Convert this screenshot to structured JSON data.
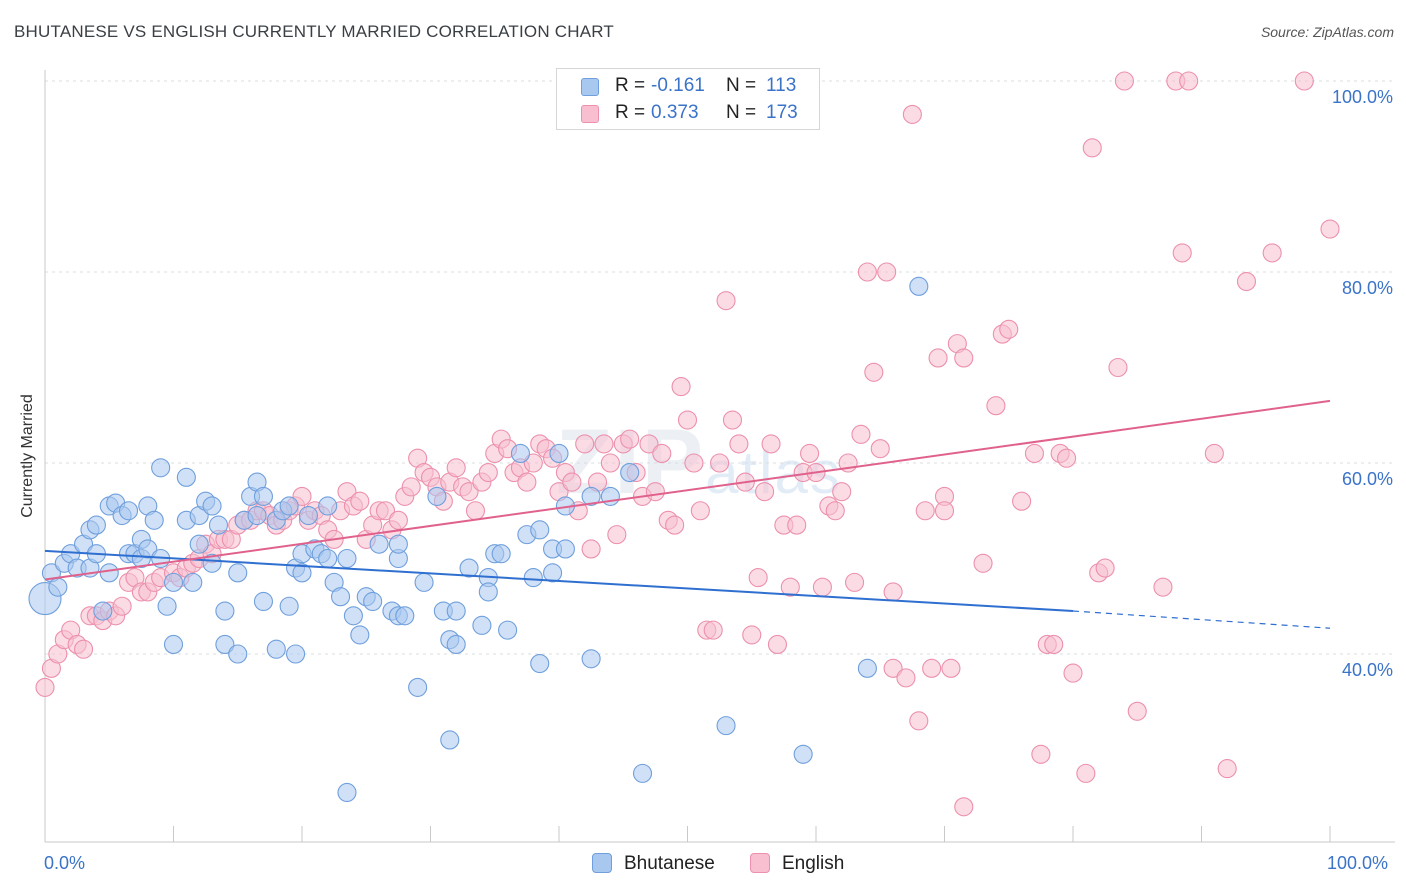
{
  "title": "BHUTANESE VS ENGLISH CURRENTLY MARRIED CORRELATION CHART",
  "source": "Source: ZipAtlas.com",
  "watermark": {
    "main": "ZIP",
    "sub": "atlas"
  },
  "legend_top": [
    {
      "r_label": "R =",
      "r_value": "-0.161",
      "n_label": "N =",
      "n_value": "113",
      "color": "#a9c8f0",
      "border": "#6f9fdc"
    },
    {
      "r_label": "R =",
      "r_value": "0.373",
      "n_label": "N =",
      "n_value": "173",
      "color": "#f7bfd0",
      "border": "#ec90ad"
    }
  ],
  "legend_bottom": [
    {
      "label": "Bhutanese",
      "color": "#a9c8f0",
      "border": "#6f9fdc"
    },
    {
      "label": "English",
      "color": "#f7bfd0",
      "border": "#ec90ad"
    }
  ],
  "axes": {
    "ylabel": "Currently Married",
    "y_ticks": [
      "40.0%",
      "60.0%",
      "80.0%",
      "100.0%"
    ],
    "x_ticks": [
      "0.0%",
      "100.0%"
    ]
  },
  "chart_data": {
    "type": "scatter",
    "title": "BHUTANESE VS ENGLISH CURRENTLY MARRIED CORRELATION CHART",
    "xlabel": "",
    "ylabel": "Currently Married",
    "xlim": [
      0,
      100
    ],
    "ylim": [
      22,
      102
    ],
    "grid": "horizontal dashed",
    "legend": "top-center",
    "series": [
      {
        "name": "Bhutanese",
        "color": "#6f9fdc",
        "fill": "#a9c8f0",
        "trend": {
          "x": [
            0,
            80
          ],
          "y": [
            50.8,
            44.5
          ],
          "dashed_extension_to": [
            100,
            42.7
          ]
        },
        "points": [
          [
            0,
            45.8
          ],
          [
            0.5,
            48.5
          ],
          [
            1,
            47
          ],
          [
            1.5,
            49.5
          ],
          [
            2,
            50.5
          ],
          [
            2.5,
            49
          ],
          [
            3,
            51.5
          ],
          [
            3.5,
            53
          ],
          [
            3.5,
            49
          ],
          [
            4,
            50.5
          ],
          [
            4,
            53.5
          ],
          [
            4.5,
            44.5
          ],
          [
            5,
            55.5
          ],
          [
            5,
            48.5
          ],
          [
            5.5,
            55.8
          ],
          [
            6,
            54.5
          ],
          [
            6.5,
            55
          ],
          [
            6.5,
            50.5
          ],
          [
            7,
            50.5
          ],
          [
            7.5,
            50
          ],
          [
            7.5,
            52
          ],
          [
            8,
            55.5
          ],
          [
            8,
            51
          ],
          [
            8.5,
            54
          ],
          [
            9,
            50
          ],
          [
            9,
            59.5
          ],
          [
            9.5,
            45
          ],
          [
            10,
            41
          ],
          [
            10,
            47.5
          ],
          [
            11,
            54
          ],
          [
            11,
            58.5
          ],
          [
            11.5,
            47.5
          ],
          [
            12,
            54.5
          ],
          [
            12,
            51.5
          ],
          [
            12.5,
            56
          ],
          [
            13,
            55.5
          ],
          [
            13,
            49.5
          ],
          [
            13.5,
            53.5
          ],
          [
            14,
            41
          ],
          [
            14,
            44.5
          ],
          [
            15,
            40
          ],
          [
            15,
            48.5
          ],
          [
            15.5,
            54
          ],
          [
            16,
            56.5
          ],
          [
            16.5,
            58
          ],
          [
            16.5,
            54.5
          ],
          [
            17,
            45.5
          ],
          [
            17,
            56.5
          ],
          [
            18,
            40.5
          ],
          [
            18,
            54
          ],
          [
            18.5,
            55
          ],
          [
            19,
            45
          ],
          [
            19,
            55.5
          ],
          [
            19.5,
            40
          ],
          [
            19.5,
            49
          ],
          [
            20,
            48.5
          ],
          [
            20,
            50.5
          ],
          [
            20.5,
            54.5
          ],
          [
            21,
            51
          ],
          [
            21.5,
            50.5
          ],
          [
            22,
            55.5
          ],
          [
            22,
            50
          ],
          [
            22.5,
            47.5
          ],
          [
            23,
            46
          ],
          [
            23.5,
            50
          ],
          [
            24,
            44
          ],
          [
            24.5,
            42
          ],
          [
            25,
            46
          ],
          [
            25.5,
            45.5
          ],
          [
            23.5,
            25.5
          ],
          [
            26,
            51.5
          ],
          [
            27,
            44.5
          ],
          [
            27.5,
            50
          ],
          [
            27.5,
            51.5
          ],
          [
            27.5,
            44
          ],
          [
            28,
            44
          ],
          [
            29,
            36.5
          ],
          [
            29.5,
            47.5
          ],
          [
            30.5,
            56.5
          ],
          [
            31,
            44.5
          ],
          [
            31.5,
            41.5
          ],
          [
            31.5,
            31
          ],
          [
            32,
            44.5
          ],
          [
            32,
            41
          ],
          [
            33,
            49
          ],
          [
            34,
            43
          ],
          [
            34.5,
            48
          ],
          [
            34.5,
            46.5
          ],
          [
            35,
            50.5
          ],
          [
            35.5,
            50.5
          ],
          [
            36,
            42.5
          ],
          [
            37,
            61
          ],
          [
            37.5,
            52.5
          ],
          [
            38,
            48
          ],
          [
            38.5,
            39
          ],
          [
            38.5,
            53
          ],
          [
            39.5,
            48.5
          ],
          [
            39.5,
            51
          ],
          [
            40,
            61
          ],
          [
            40.5,
            51
          ],
          [
            40.5,
            55.5
          ],
          [
            42.5,
            56.5
          ],
          [
            42.5,
            39.5
          ],
          [
            44,
            56.5
          ],
          [
            45.5,
            59
          ],
          [
            46.5,
            27.5
          ],
          [
            53,
            32.5
          ],
          [
            59,
            29.5
          ],
          [
            64,
            38.5
          ],
          [
            68,
            78.5
          ]
        ]
      },
      {
        "name": "English",
        "color": "#ec90ad",
        "fill": "#f7bfd0",
        "trend": {
          "x": [
            0,
            100
          ],
          "y": [
            47.8,
            66.5
          ]
        },
        "points": [
          [
            0,
            36.5
          ],
          [
            0.5,
            38.5
          ],
          [
            1,
            40
          ],
          [
            1.5,
            41.5
          ],
          [
            2,
            42.5
          ],
          [
            2.5,
            41
          ],
          [
            3,
            40.5
          ],
          [
            3.5,
            44
          ],
          [
            4,
            44
          ],
          [
            4.5,
            43.5
          ],
          [
            5,
            44.5
          ],
          [
            5.5,
            44
          ],
          [
            6,
            45
          ],
          [
            6.5,
            47.5
          ],
          [
            7,
            48
          ],
          [
            7.5,
            46.5
          ],
          [
            8,
            46.5
          ],
          [
            8.5,
            47.5
          ],
          [
            9,
            48
          ],
          [
            10,
            48.5
          ],
          [
            10.5,
            48
          ],
          [
            11,
            49
          ],
          [
            11.5,
            49.5
          ],
          [
            12,
            50
          ],
          [
            12.5,
            51.5
          ],
          [
            13,
            50.5
          ],
          [
            13.5,
            52
          ],
          [
            14,
            52
          ],
          [
            14.5,
            52
          ],
          [
            15,
            53.5
          ],
          [
            15.5,
            54
          ],
          [
            16,
            54
          ],
          [
            16.5,
            55
          ],
          [
            17,
            55
          ],
          [
            17.5,
            54.5
          ],
          [
            18,
            53.5
          ],
          [
            18.5,
            54
          ],
          [
            19,
            55
          ],
          [
            19.5,
            55.5
          ],
          [
            20,
            56.5
          ],
          [
            20.5,
            54
          ],
          [
            21,
            55
          ],
          [
            21.5,
            54.5
          ],
          [
            22,
            53
          ],
          [
            22.5,
            52
          ],
          [
            23,
            55
          ],
          [
            23.5,
            57
          ],
          [
            24,
            55.5
          ],
          [
            24.5,
            56
          ],
          [
            25,
            52
          ],
          [
            25.5,
            53.5
          ],
          [
            26,
            55
          ],
          [
            26.5,
            55
          ],
          [
            27,
            53
          ],
          [
            27.5,
            54
          ],
          [
            28,
            56.5
          ],
          [
            28.5,
            57.5
          ],
          [
            29,
            60.5
          ],
          [
            29.5,
            59
          ],
          [
            30,
            58.5
          ],
          [
            30.5,
            57.5
          ],
          [
            31,
            56
          ],
          [
            31.5,
            58
          ],
          [
            32,
            59.5
          ],
          [
            32.5,
            57.5
          ],
          [
            33,
            57
          ],
          [
            33.5,
            55
          ],
          [
            34,
            58
          ],
          [
            34.5,
            59
          ],
          [
            35,
            61
          ],
          [
            35.5,
            62.5
          ],
          [
            36,
            61.5
          ],
          [
            36.5,
            59
          ],
          [
            37,
            59.5
          ],
          [
            37.5,
            58
          ],
          [
            38,
            60
          ],
          [
            38.5,
            62
          ],
          [
            39,
            61.5
          ],
          [
            39.5,
            60.5
          ],
          [
            40,
            57
          ],
          [
            40.5,
            59
          ],
          [
            41,
            58
          ],
          [
            41.5,
            55
          ],
          [
            42,
            62
          ],
          [
            42.5,
            51
          ],
          [
            43,
            58
          ],
          [
            43.5,
            62
          ],
          [
            44,
            60
          ],
          [
            44.5,
            52.5
          ],
          [
            45,
            62
          ],
          [
            45.5,
            62.5
          ],
          [
            46,
            59
          ],
          [
            46.5,
            56.5
          ],
          [
            47,
            62
          ],
          [
            47.5,
            57
          ],
          [
            48,
            61
          ],
          [
            48.5,
            54
          ],
          [
            49,
            53.5
          ],
          [
            49.5,
            68
          ],
          [
            50,
            64.5
          ],
          [
            50.5,
            60
          ],
          [
            51,
            55
          ],
          [
            51.5,
            42.5
          ],
          [
            52,
            42.5
          ],
          [
            52.5,
            60
          ],
          [
            53,
            77
          ],
          [
            53.5,
            64.5
          ],
          [
            54,
            62
          ],
          [
            54.5,
            58
          ],
          [
            55,
            42
          ],
          [
            55.5,
            48
          ],
          [
            56,
            57
          ],
          [
            56.5,
            62
          ],
          [
            57,
            41
          ],
          [
            57.5,
            53.5
          ],
          [
            58,
            47
          ],
          [
            58.5,
            53.5
          ],
          [
            59,
            59
          ],
          [
            59.5,
            61
          ],
          [
            60,
            59
          ],
          [
            60.5,
            47
          ],
          [
            61,
            55.5
          ],
          [
            61.5,
            55
          ],
          [
            62,
            57
          ],
          [
            62.5,
            60
          ],
          [
            63,
            47.5
          ],
          [
            63.5,
            63
          ],
          [
            64,
            80
          ],
          [
            64.5,
            69.5
          ],
          [
            65,
            61.5
          ],
          [
            65.5,
            80
          ],
          [
            66,
            38.5
          ],
          [
            67,
            37.5
          ],
          [
            67.5,
            96.5
          ],
          [
            68,
            33
          ],
          [
            68.5,
            55
          ],
          [
            69,
            38.5
          ],
          [
            69.5,
            71
          ],
          [
            70,
            56.5
          ],
          [
            70.5,
            38.5
          ],
          [
            71,
            72.5
          ],
          [
            71.5,
            71
          ],
          [
            73,
            49.5
          ],
          [
            74,
            66
          ],
          [
            74.5,
            73.5
          ],
          [
            75,
            74
          ],
          [
            76,
            56
          ],
          [
            77,
            61
          ],
          [
            77.5,
            29.5
          ],
          [
            78,
            41
          ],
          [
            78.5,
            41
          ],
          [
            79,
            61
          ],
          [
            79.5,
            60.5
          ],
          [
            80,
            38
          ],
          [
            81,
            27.5
          ],
          [
            81.5,
            93
          ],
          [
            82,
            48.5
          ],
          [
            82.5,
            49
          ],
          [
            83.5,
            70
          ],
          [
            84,
            100
          ],
          [
            85,
            34
          ],
          [
            87,
            47
          ],
          [
            88,
            100
          ],
          [
            88.5,
            82
          ],
          [
            89,
            100
          ],
          [
            91,
            61
          ],
          [
            92,
            28
          ],
          [
            93.5,
            79
          ],
          [
            95.5,
            82
          ],
          [
            98,
            100
          ],
          [
            100,
            84.5
          ],
          [
            71.5,
            24
          ],
          [
            70,
            55
          ],
          [
            66,
            46.5
          ]
        ]
      }
    ]
  }
}
